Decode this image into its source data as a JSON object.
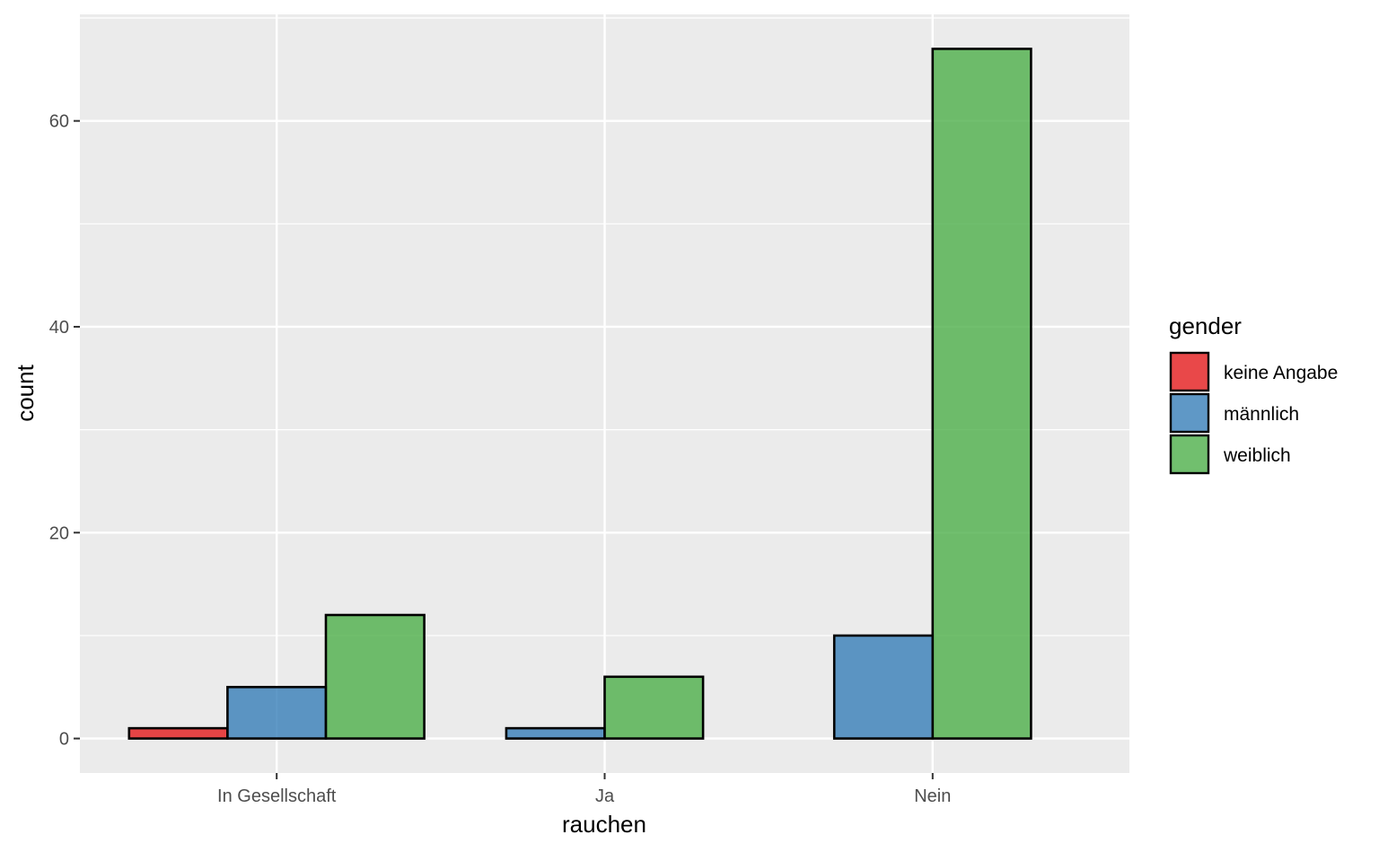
{
  "chart_data": {
    "type": "bar",
    "layout": "dodge",
    "categories": [
      "In Gesellschaft",
      "Ja",
      "Nein"
    ],
    "series": [
      {
        "name": "keine Angabe",
        "color": "#e41a1c",
        "values": [
          1,
          null,
          null
        ]
      },
      {
        "name": "männlich",
        "color": "#377eb8",
        "values": [
          5,
          1,
          10
        ]
      },
      {
        "name": "weiblich",
        "color": "#4daf4a",
        "values": [
          12,
          6,
          67
        ]
      }
    ],
    "xlabel": "rauchen",
    "ylabel": "count",
    "ylim": [
      -3.35,
      70.35
    ],
    "yticks": [
      0,
      20,
      40,
      60
    ],
    "grid": true,
    "legend": {
      "title": "gender",
      "placement": "right"
    }
  }
}
